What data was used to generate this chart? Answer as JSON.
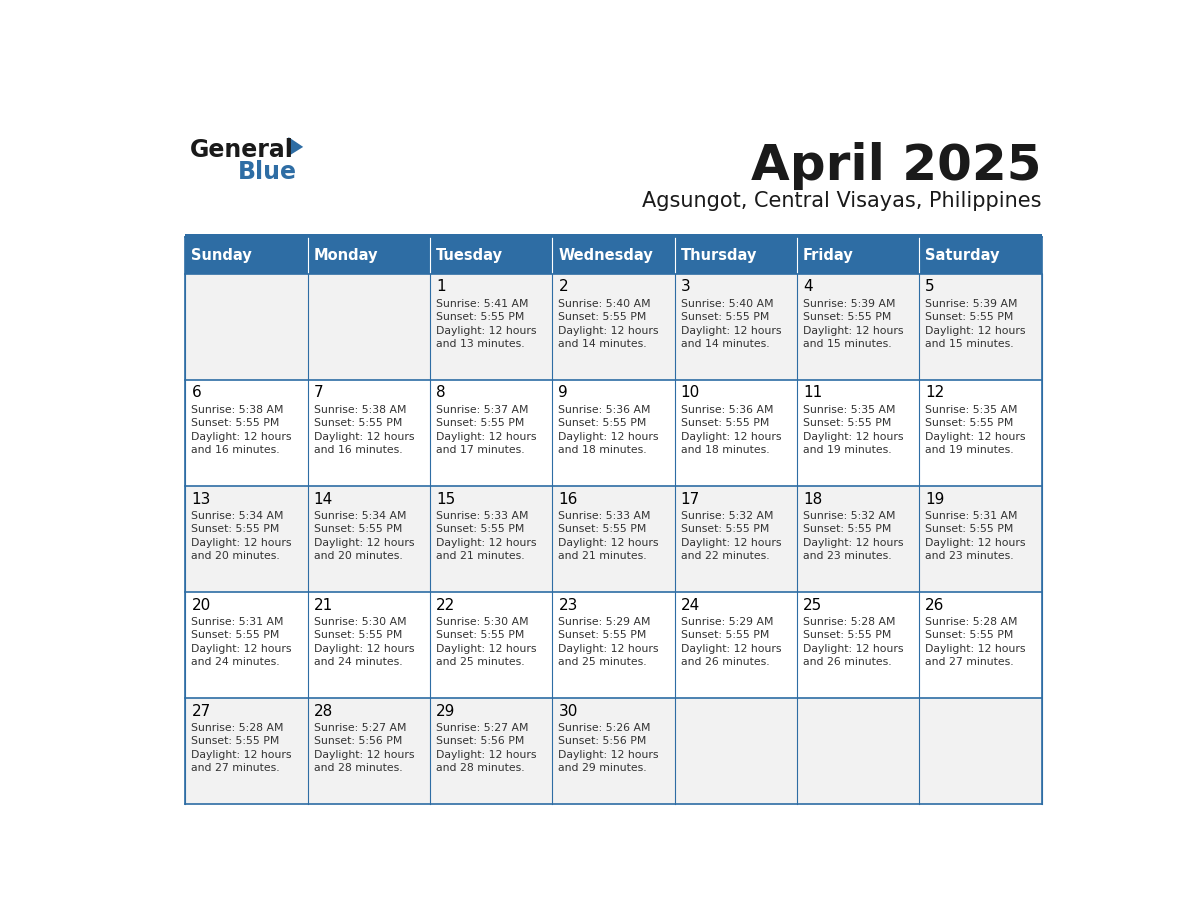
{
  "title": "April 2025",
  "subtitle": "Agsungot, Central Visayas, Philippines",
  "header_bg": "#2E6DA4",
  "header_text": "#FFFFFF",
  "row_bg_odd": "#F2F2F2",
  "row_bg_even": "#FFFFFF",
  "border_color": "#2E6DA4",
  "day_names": [
    "Sunday",
    "Monday",
    "Tuesday",
    "Wednesday",
    "Thursday",
    "Friday",
    "Saturday"
  ],
  "title_color": "#1a1a1a",
  "subtitle_color": "#1a1a1a",
  "day_number_color": "#000000",
  "cell_text_color": "#333333",
  "calendar": [
    [
      {
        "day": "",
        "sunrise": "",
        "sunset": "",
        "daylight": ""
      },
      {
        "day": "",
        "sunrise": "",
        "sunset": "",
        "daylight": ""
      },
      {
        "day": "1",
        "sunrise": "5:41 AM",
        "sunset": "5:55 PM",
        "daylight": "12 hours and 13 minutes."
      },
      {
        "day": "2",
        "sunrise": "5:40 AM",
        "sunset": "5:55 PM",
        "daylight": "12 hours and 14 minutes."
      },
      {
        "day": "3",
        "sunrise": "5:40 AM",
        "sunset": "5:55 PM",
        "daylight": "12 hours and 14 minutes."
      },
      {
        "day": "4",
        "sunrise": "5:39 AM",
        "sunset": "5:55 PM",
        "daylight": "12 hours and 15 minutes."
      },
      {
        "day": "5",
        "sunrise": "5:39 AM",
        "sunset": "5:55 PM",
        "daylight": "12 hours and 15 minutes."
      }
    ],
    [
      {
        "day": "6",
        "sunrise": "5:38 AM",
        "sunset": "5:55 PM",
        "daylight": "12 hours and 16 minutes."
      },
      {
        "day": "7",
        "sunrise": "5:38 AM",
        "sunset": "5:55 PM",
        "daylight": "12 hours and 16 minutes."
      },
      {
        "day": "8",
        "sunrise": "5:37 AM",
        "sunset": "5:55 PM",
        "daylight": "12 hours and 17 minutes."
      },
      {
        "day": "9",
        "sunrise": "5:36 AM",
        "sunset": "5:55 PM",
        "daylight": "12 hours and 18 minutes."
      },
      {
        "day": "10",
        "sunrise": "5:36 AM",
        "sunset": "5:55 PM",
        "daylight": "12 hours and 18 minutes."
      },
      {
        "day": "11",
        "sunrise": "5:35 AM",
        "sunset": "5:55 PM",
        "daylight": "12 hours and 19 minutes."
      },
      {
        "day": "12",
        "sunrise": "5:35 AM",
        "sunset": "5:55 PM",
        "daylight": "12 hours and 19 minutes."
      }
    ],
    [
      {
        "day": "13",
        "sunrise": "5:34 AM",
        "sunset": "5:55 PM",
        "daylight": "12 hours and 20 minutes."
      },
      {
        "day": "14",
        "sunrise": "5:34 AM",
        "sunset": "5:55 PM",
        "daylight": "12 hours and 20 minutes."
      },
      {
        "day": "15",
        "sunrise": "5:33 AM",
        "sunset": "5:55 PM",
        "daylight": "12 hours and 21 minutes."
      },
      {
        "day": "16",
        "sunrise": "5:33 AM",
        "sunset": "5:55 PM",
        "daylight": "12 hours and 21 minutes."
      },
      {
        "day": "17",
        "sunrise": "5:32 AM",
        "sunset": "5:55 PM",
        "daylight": "12 hours and 22 minutes."
      },
      {
        "day": "18",
        "sunrise": "5:32 AM",
        "sunset": "5:55 PM",
        "daylight": "12 hours and 23 minutes."
      },
      {
        "day": "19",
        "sunrise": "5:31 AM",
        "sunset": "5:55 PM",
        "daylight": "12 hours and 23 minutes."
      }
    ],
    [
      {
        "day": "20",
        "sunrise": "5:31 AM",
        "sunset": "5:55 PM",
        "daylight": "12 hours and 24 minutes."
      },
      {
        "day": "21",
        "sunrise": "5:30 AM",
        "sunset": "5:55 PM",
        "daylight": "12 hours and 24 minutes."
      },
      {
        "day": "22",
        "sunrise": "5:30 AM",
        "sunset": "5:55 PM",
        "daylight": "12 hours and 25 minutes."
      },
      {
        "day": "23",
        "sunrise": "5:29 AM",
        "sunset": "5:55 PM",
        "daylight": "12 hours and 25 minutes."
      },
      {
        "day": "24",
        "sunrise": "5:29 AM",
        "sunset": "5:55 PM",
        "daylight": "12 hours and 26 minutes."
      },
      {
        "day": "25",
        "sunrise": "5:28 AM",
        "sunset": "5:55 PM",
        "daylight": "12 hours and 26 minutes."
      },
      {
        "day": "26",
        "sunrise": "5:28 AM",
        "sunset": "5:55 PM",
        "daylight": "12 hours and 27 minutes."
      }
    ],
    [
      {
        "day": "27",
        "sunrise": "5:28 AM",
        "sunset": "5:55 PM",
        "daylight": "12 hours and 27 minutes."
      },
      {
        "day": "28",
        "sunrise": "5:27 AM",
        "sunset": "5:56 PM",
        "daylight": "12 hours and 28 minutes."
      },
      {
        "day": "29",
        "sunrise": "5:27 AM",
        "sunset": "5:56 PM",
        "daylight": "12 hours and 28 minutes."
      },
      {
        "day": "30",
        "sunrise": "5:26 AM",
        "sunset": "5:56 PM",
        "daylight": "12 hours and 29 minutes."
      },
      {
        "day": "",
        "sunrise": "",
        "sunset": "",
        "daylight": ""
      },
      {
        "day": "",
        "sunrise": "",
        "sunset": "",
        "daylight": ""
      },
      {
        "day": "",
        "sunrise": "",
        "sunset": "",
        "daylight": ""
      }
    ]
  ],
  "generalblue_text_color": "#1a1a1a",
  "generalblue_blue_color": "#2E6DA4"
}
